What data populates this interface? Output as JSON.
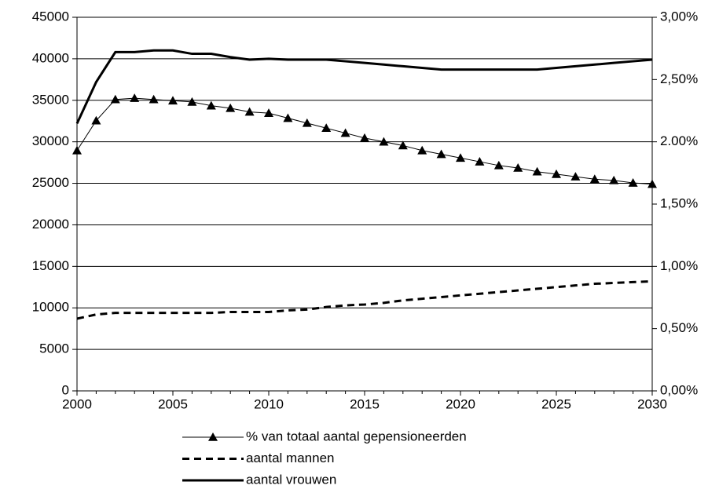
{
  "chart_data": {
    "type": "line",
    "x": [
      2000,
      2001,
      2002,
      2003,
      2004,
      2005,
      2006,
      2007,
      2008,
      2009,
      2010,
      2011,
      2012,
      2013,
      2014,
      2015,
      2016,
      2017,
      2018,
      2019,
      2020,
      2021,
      2022,
      2023,
      2024,
      2025,
      2026,
      2027,
      2028,
      2029,
      2030
    ],
    "xlim": [
      2000,
      2030
    ],
    "xticks": [
      2000,
      2005,
      2010,
      2015,
      2020,
      2025,
      2030
    ],
    "ylim": [
      0,
      45000
    ],
    "yticks": [
      0,
      5000,
      10000,
      15000,
      20000,
      25000,
      30000,
      35000,
      40000,
      45000
    ],
    "y2lim": [
      0,
      3
    ],
    "y2ticks": [
      {
        "value": 0,
        "label": "0,00%"
      },
      {
        "value": 0.5,
        "label": "0,50%"
      },
      {
        "value": 1,
        "label": "1,00%"
      },
      {
        "value": 1.5,
        "label": "1,50%"
      },
      {
        "value": 2,
        "label": "2.00%"
      },
      {
        "value": 2.5,
        "label": "2,50%"
      },
      {
        "value": 3,
        "label": "3,00%"
      }
    ],
    "grid": true,
    "legend": "bottom",
    "series": [
      {
        "name": "% van totaal aantal gepensioneerden",
        "color": "#000000",
        "axis": "y2",
        "marker": "triangle",
        "linestyle": "solid",
        "linewidth": 1,
        "values": [
          1.93,
          2.17,
          2.34,
          2.35,
          2.34,
          2.33,
          2.32,
          2.29,
          2.27,
          2.24,
          2.23,
          2.19,
          2.15,
          2.11,
          2.07,
          2.03,
          2.0,
          1.97,
          1.93,
          1.9,
          1.87,
          1.84,
          1.81,
          1.79,
          1.76,
          1.74,
          1.72,
          1.7,
          1.69,
          1.67,
          1.66
        ]
      },
      {
        "name": "aantal mannen",
        "color": "#000000",
        "marker": "none",
        "linestyle": "dashed",
        "linewidth": 3,
        "values": [
          8700,
          9200,
          9400,
          9400,
          9400,
          9400,
          9400,
          9400,
          9500,
          9500,
          9500,
          9700,
          9800,
          10100,
          10300,
          10400,
          10600,
          10900,
          11100,
          11300,
          11500,
          11700,
          11900,
          12100,
          12300,
          12500,
          12700,
          12900,
          13000,
          13100,
          13200
        ]
      },
      {
        "name": "aantal vrouwen",
        "color": "#000000",
        "marker": "none",
        "linestyle": "solid",
        "linewidth": 3,
        "values": [
          32200,
          37200,
          40800,
          40800,
          41000,
          41000,
          40600,
          40600,
          40200,
          39900,
          40000,
          39900,
          39900,
          39900,
          39700,
          39500,
          39300,
          39100,
          38900,
          38700,
          38700,
          38700,
          38700,
          38700,
          38700,
          38900,
          39100,
          39300,
          39500,
          39700,
          39900
        ]
      }
    ]
  }
}
